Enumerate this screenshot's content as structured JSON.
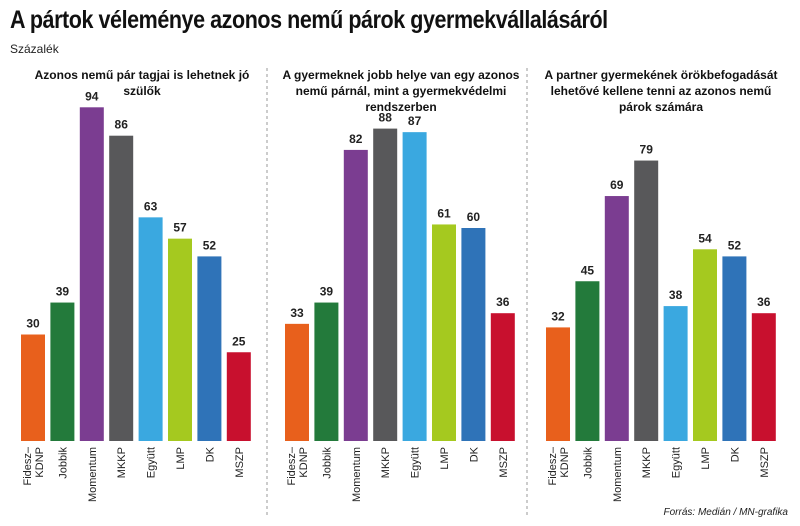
{
  "title": "A pártok véleménye azonos nemű párok gyermekvállalásáról",
  "subtitle": "Százalék",
  "source": "Forrás: Medián / MN-grafika",
  "colors": {
    "Fidesz–KDNP": "#e8601c",
    "Jobbik": "#237a3b",
    "Momentum": "#7b3d91",
    "MKKP": "#58585a",
    "Együtt": "#3aa8e0",
    "LMP": "#a5c91f",
    "DK": "#2f73b8",
    "MSZP": "#c8102e"
  },
  "chart_data": [
    {
      "type": "bar",
      "title": "Azonos nemű pár tagjai is lehetnek jó szülők",
      "categories": [
        "Fidesz–KDNP",
        "Jobbik",
        "Momentum",
        "MKKP",
        "Együtt",
        "LMP",
        "DK",
        "MSZP"
      ],
      "tick_labels": [
        "Fidesz–\nKDNP",
        "Jobbik",
        "Momentum",
        "MKKP",
        "Együtt",
        "LMP",
        "DK",
        "MSZP"
      ],
      "values": [
        30,
        39,
        94,
        86,
        63,
        57,
        52,
        25
      ],
      "ylim": [
        0,
        100
      ]
    },
    {
      "type": "bar",
      "title": "A gyermeknek jobb helye van egy azonos nemű párnál, mint a gyermekvédelmi rendszerben",
      "categories": [
        "Fidesz–KDNP",
        "Jobbik",
        "Momentum",
        "MKKP",
        "Együtt",
        "LMP",
        "DK",
        "MSZP"
      ],
      "tick_labels": [
        "Fidesz–\nKDNP",
        "Jobbik",
        "Momentum",
        "MKKP",
        "Együtt",
        "LMP",
        "DK",
        "MSZP"
      ],
      "values": [
        33,
        39,
        82,
        88,
        87,
        61,
        60,
        36
      ],
      "ylim": [
        0,
        100
      ]
    },
    {
      "type": "bar",
      "title": "A partner gyermekének örökbefogadását lehetővé kellene tenni az azonos nemű párok számára",
      "categories": [
        "Fidesz–KDNP",
        "Jobbik",
        "Momentum",
        "MKKP",
        "Együtt",
        "LMP",
        "DK",
        "MSZP"
      ],
      "tick_labels": [
        "Fidesz–\nKDNP",
        "Jobbik",
        "Momentum",
        "MKKP",
        "Együtt",
        "LMP",
        "DK",
        "MSZP"
      ],
      "values": [
        32,
        45,
        69,
        79,
        38,
        54,
        52,
        36
      ],
      "ylim": [
        0,
        100
      ]
    }
  ]
}
